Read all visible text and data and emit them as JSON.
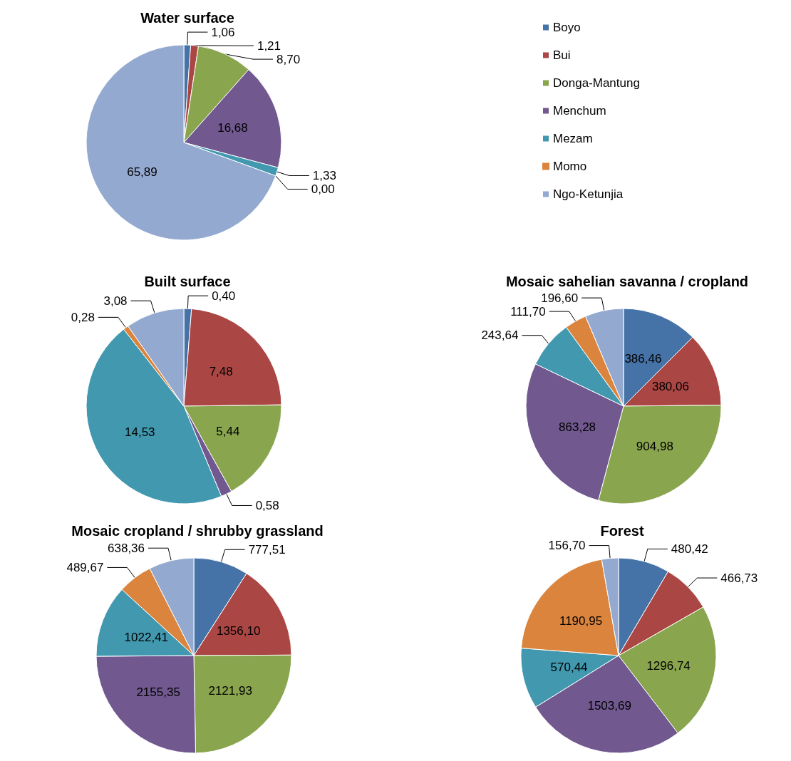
{
  "chart_data": [
    {
      "type": "pie",
      "title": "Water surface",
      "legend": "right",
      "categories": [
        "Boyo",
        "Bui",
        "Donga-Mantung",
        "Menchum",
        "Mezam",
        "Momo",
        "Ngo-Ketunjia"
      ],
      "values": [
        1.06,
        1.21,
        8.7,
        16.68,
        1.33,
        0.0,
        65.89
      ],
      "value_labels": [
        "1,06",
        "1,21",
        "8,70",
        "16,68",
        "1,33",
        "0,00",
        "65,89"
      ],
      "colors": [
        "#4572a7",
        "#aa4643",
        "#89a54e",
        "#71588f",
        "#4198af",
        "#db843d",
        "#93a9cf"
      ]
    },
    {
      "type": "pie",
      "title": "Built surface",
      "categories": [
        null,
        null,
        null,
        null,
        null,
        null,
        null
      ],
      "values": [
        0.4,
        7.48,
        5.44,
        0.58,
        14.53,
        0.28,
        3.08
      ],
      "value_labels": [
        "0,40",
        "7,48",
        "5,44",
        "0,58",
        "14,53",
        "0,28",
        "3,08"
      ],
      "colors": [
        "#4572a7",
        "#aa4643",
        "#89a54e",
        "#71588f",
        "#4198af",
        "#db843d",
        "#93a9cf"
      ]
    },
    {
      "type": "pie",
      "title": "Mosaic sahelian savanna / cropland",
      "categories": [
        null,
        null,
        null,
        null,
        null,
        null,
        null
      ],
      "values": [
        386.46,
        380.06,
        904.98,
        863.28,
        243.64,
        111.7,
        196.6
      ],
      "value_labels": [
        "386,46",
        "380,06",
        "904,98",
        "863,28",
        "243,64",
        "111,70",
        "196,60"
      ],
      "colors": [
        "#4572a7",
        "#aa4643",
        "#89a54e",
        "#71588f",
        "#4198af",
        "#db843d",
        "#93a9cf"
      ]
    },
    {
      "type": "pie",
      "title": "Mosaic cropland / shrubby grassland",
      "categories": [
        null,
        null,
        null,
        null,
        null,
        null,
        null
      ],
      "values": [
        777.51,
        1356.1,
        2121.93,
        2155.35,
        1022.41,
        489.67,
        638.36
      ],
      "value_labels": [
        "777,51",
        "1356,10",
        "2121,93",
        "2155,35",
        "1022,41",
        "489,67",
        "638,36"
      ],
      "colors": [
        "#4572a7",
        "#aa4643",
        "#89a54e",
        "#71588f",
        "#4198af",
        "#db843d",
        "#93a9cf"
      ]
    },
    {
      "type": "pie",
      "title": "Forest",
      "categories": [
        null,
        null,
        null,
        null,
        null,
        null,
        null
      ],
      "values": [
        480.42,
        466.73,
        1296.74,
        1503.69,
        570.44,
        1190.95,
        156.7
      ],
      "value_labels": [
        "480,42",
        "466,73",
        "1296,74",
        "1503,69",
        "570,44",
        "1190,95",
        "156,70"
      ],
      "colors": [
        "#4572a7",
        "#aa4643",
        "#89a54e",
        "#71588f",
        "#4198af",
        "#db843d",
        "#93a9cf"
      ]
    }
  ]
}
